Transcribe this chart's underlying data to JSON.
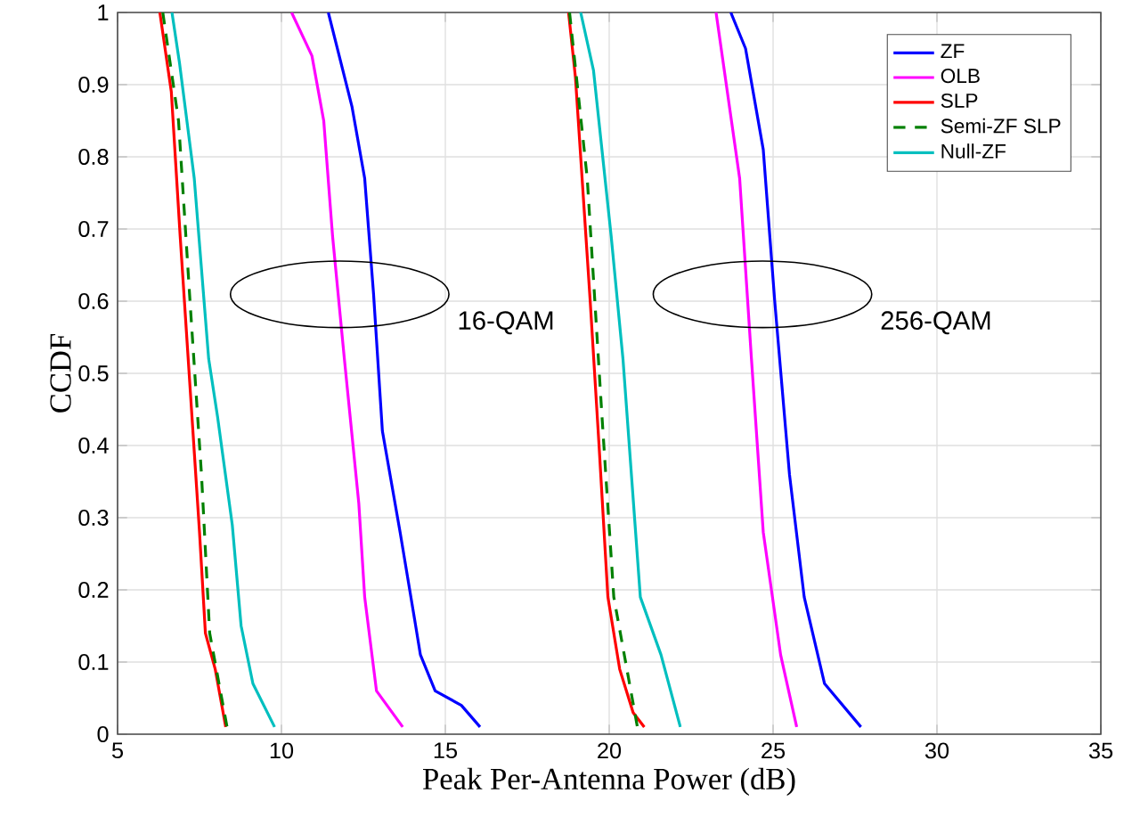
{
  "chart_data": {
    "type": "line",
    "xlabel": "Peak Per-Antenna Power (dB)",
    "ylabel": "CCDF",
    "xlim": [
      5,
      35
    ],
    "ylim": [
      0,
      1
    ],
    "xticks": [
      5,
      10,
      15,
      20,
      25,
      30,
      35
    ],
    "yticks": [
      0,
      0.1,
      0.2,
      0.3,
      0.4,
      0.5,
      0.6,
      0.7,
      0.8,
      0.9,
      1
    ],
    "grid": true,
    "legend": "top right",
    "marker": "none",
    "series": [
      {
        "name": "ZF",
        "color": "#0000ff",
        "x": [
          11.43,
          12.15,
          12.54,
          12.81,
          13.08,
          13.62,
          14.06,
          14.24,
          14.69,
          15.49,
          16.06,
          null,
          23.71,
          24.16,
          24.7,
          25.05,
          25.5,
          25.95,
          26.57,
          27.68
        ],
        "values": [
          1,
          0.87,
          0.77,
          0.61,
          0.42,
          0.28,
          0.16,
          0.11,
          0.06,
          0.04,
          0.01,
          null,
          1,
          0.95,
          0.81,
          0.6,
          0.36,
          0.19,
          0.07,
          0.01
        ]
      },
      {
        "name": "OLB",
        "color": "#ff00ff",
        "x": [
          10.31,
          10.93,
          11.29,
          11.56,
          11.92,
          12.36,
          12.54,
          12.9,
          13.7,
          null,
          23.26,
          23.98,
          24.34,
          24.7,
          25.23,
          25.72
        ],
        "values": [
          1,
          0.94,
          0.85,
          0.69,
          0.52,
          0.32,
          0.19,
          0.06,
          0.01,
          null,
          1,
          0.77,
          0.52,
          0.28,
          0.11,
          0.01
        ]
      },
      {
        "name": "SLP",
        "color": "#ff0000",
        "x": [
          6.29,
          6.64,
          6.91,
          7.27,
          7.5,
          7.68,
          7.98,
          8.3,
          null,
          18.76,
          18.97,
          19.42,
          19.69,
          19.96,
          20.32,
          20.73,
          21.07
        ],
        "values": [
          1,
          0.89,
          0.69,
          0.44,
          0.28,
          0.14,
          0.09,
          0.01,
          null,
          1,
          0.91,
          0.6,
          0.4,
          0.19,
          0.09,
          0.03,
          0.01
        ]
      },
      {
        "name": "Semi-ZF SLP",
        "color": "#008000",
        "line_style": "dashed",
        "x": [
          6.38,
          6.86,
          7.21,
          7.56,
          7.81,
          8.34,
          null,
          18.79,
          19.33,
          19.78,
          20.14,
          20.86
        ],
        "values": [
          1,
          0.85,
          0.6,
          0.36,
          0.14,
          0.01,
          null,
          1,
          0.77,
          0.44,
          0.19,
          0.01
        ]
      },
      {
        "name": "Null-ZF",
        "color": "#00bfbf",
        "x": [
          6.66,
          6.89,
          7.34,
          7.78,
          8.05,
          8.5,
          8.77,
          9.13,
          9.79,
          null,
          19.13,
          19.52,
          20.06,
          20.42,
          20.95,
          21.58,
          22.17
        ],
        "values": [
          1,
          0.93,
          0.77,
          0.52,
          0.44,
          0.29,
          0.15,
          0.07,
          0.01,
          null,
          1,
          0.92,
          0.69,
          0.52,
          0.19,
          0.11,
          0.01
        ]
      }
    ],
    "annotations": [
      "16-QAM",
      "256-QAM"
    ]
  }
}
